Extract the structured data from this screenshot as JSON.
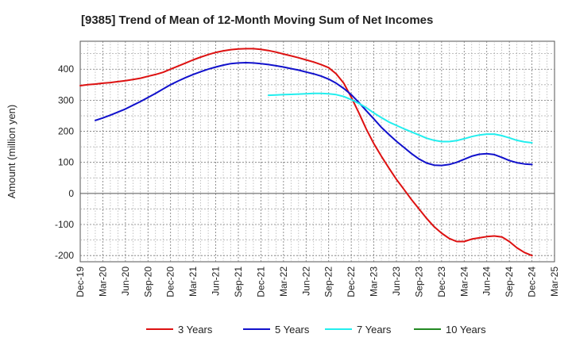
{
  "chart_data": {
    "type": "line",
    "title": "[9385]  Trend of Mean of 12-Month Moving Sum of Net Incomes",
    "xlabel": "",
    "ylabel": "Amount (million yen)",
    "ylim": [
      -220,
      490
    ],
    "yticks": [
      400,
      300,
      200,
      100,
      0,
      -100,
      -200
    ],
    "grid": true,
    "legend_position": "bottom",
    "categories": [
      "Dec-19",
      "Mar-20",
      "Jun-20",
      "Sep-20",
      "Dec-20",
      "Mar-21",
      "Jun-21",
      "Sep-21",
      "Dec-21",
      "Mar-22",
      "Jun-22",
      "Sep-22",
      "Dec-22",
      "Mar-23",
      "Jun-23",
      "Sep-23",
      "Dec-23",
      "Mar-24",
      "Jun-24",
      "Sep-24",
      "Dec-24",
      "Mar-25"
    ],
    "series": [
      {
        "name": "3 Years",
        "color": "#dd1111",
        "x": [
          0,
          0.333,
          0.667,
          1,
          1.333,
          1.667,
          2,
          2.333,
          2.667,
          3,
          3.333,
          3.667,
          4,
          4.333,
          4.667,
          5,
          5.333,
          5.667,
          6,
          6.333,
          6.667,
          7,
          7.333,
          7.667,
          8,
          8.333,
          8.667,
          9,
          9.333,
          9.667,
          10,
          10.333,
          10.667,
          11,
          11.333,
          11.667,
          12,
          12.333,
          12.667,
          13,
          13.333,
          13.667,
          14,
          14.333,
          14.667,
          15,
          15.333,
          15.667,
          16,
          16.333,
          16.667,
          17,
          17.333,
          17.667,
          18,
          18.333,
          18.667,
          19,
          19.333,
          19.667,
          20
        ],
        "values": [
          347,
          350,
          352,
          355,
          357,
          360,
          363,
          367,
          371,
          377,
          383,
          390,
          400,
          410,
          420,
          430,
          439,
          447,
          454,
          459,
          463,
          465,
          466,
          466,
          464,
          460,
          455,
          449,
          443,
          437,
          430,
          423,
          415,
          405,
          385,
          355,
          310,
          260,
          207,
          160,
          120,
          82,
          45,
          13,
          -20,
          -50,
          -80,
          -107,
          -128,
          -145,
          -155,
          -155,
          -147,
          -143,
          -139,
          -137,
          -140,
          -155,
          -175,
          -190,
          -200
        ]
      },
      {
        "name": "5 Years",
        "color": "#1111cc",
        "x": [
          0.667,
          1,
          1.333,
          1.667,
          2,
          2.333,
          2.667,
          3,
          3.333,
          3.667,
          4,
          4.333,
          4.667,
          5,
          5.333,
          5.667,
          6,
          6.333,
          6.667,
          7,
          7.333,
          7.667,
          8,
          8.333,
          8.667,
          9,
          9.333,
          9.667,
          10,
          10.333,
          10.667,
          11,
          11.333,
          11.667,
          12,
          12.333,
          12.667,
          13,
          13.333,
          13.667,
          14,
          14.333,
          14.667,
          15,
          15.333,
          15.667,
          16,
          16.333,
          16.667,
          17,
          17.333,
          17.667,
          18,
          18.333,
          18.667,
          19,
          19.333,
          19.667,
          20
        ],
        "values": [
          235,
          243,
          252,
          262,
          272,
          284,
          296,
          309,
          322,
          336,
          350,
          362,
          373,
          383,
          392,
          400,
          407,
          413,
          418,
          420,
          421,
          420,
          418,
          415,
          411,
          407,
          402,
          397,
          391,
          385,
          378,
          368,
          355,
          338,
          318,
          293,
          266,
          240,
          213,
          190,
          168,
          148,
          128,
          111,
          98,
          91,
          90,
          93,
          100,
          110,
          120,
          126,
          128,
          125,
          116,
          106,
          99,
          95,
          93
        ]
      },
      {
        "name": "7 Years",
        "color": "#22eeee",
        "x": [
          8.333,
          8.667,
          9,
          9.333,
          9.667,
          10,
          10.333,
          10.667,
          11,
          11.333,
          11.667,
          12,
          12.333,
          12.667,
          13,
          13.333,
          13.667,
          14,
          14.333,
          14.667,
          15,
          15.333,
          15.667,
          16,
          16.333,
          16.667,
          17,
          17.333,
          17.667,
          18,
          18.333,
          18.667,
          19,
          19.333,
          19.667,
          20
        ],
        "values": [
          316,
          317,
          318,
          319,
          320,
          321,
          322,
          322,
          321,
          318,
          312,
          302,
          290,
          276,
          259,
          244,
          230,
          219,
          208,
          198,
          188,
          178,
          171,
          167,
          167,
          170,
          176,
          183,
          188,
          191,
          191,
          186,
          179,
          171,
          166,
          163
        ]
      },
      {
        "name": "10 Years",
        "color": "#228822",
        "x": [],
        "values": []
      }
    ]
  }
}
